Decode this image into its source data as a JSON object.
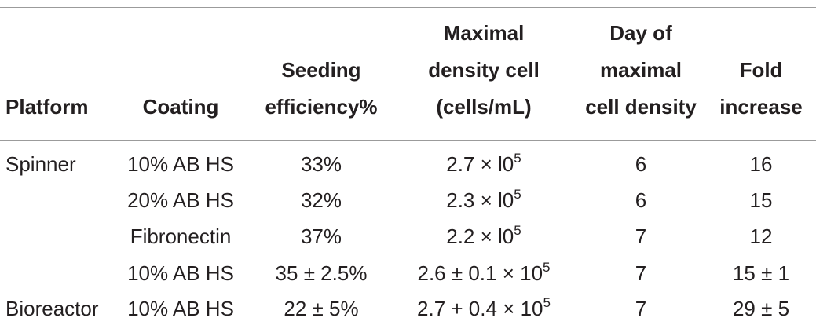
{
  "header": {
    "platform": "Platform",
    "coating": "Coating",
    "seeding": [
      "Seeding",
      "efficiency%"
    ],
    "maxdensity": [
      "Maximal",
      "density cell",
      "(cells/mL)"
    ],
    "day": [
      "Day of",
      "maximal",
      "cell density"
    ],
    "fold": [
      "Fold",
      "increase"
    ]
  },
  "rows": [
    {
      "platform": "Spinner",
      "coating": "10% AB HS",
      "seeding": "33%",
      "density_base": "2.7 × l0",
      "density_exp": "5",
      "day": "6",
      "fold": "16"
    },
    {
      "platform": "",
      "coating": "20% AB HS",
      "seeding": "32%",
      "density_base": "2.3 × l0",
      "density_exp": "5",
      "day": "6",
      "fold": "15"
    },
    {
      "platform": "",
      "coating": "Fibronectin",
      "seeding": "37%",
      "density_base": "2.2 × l0",
      "density_exp": "5",
      "day": "7",
      "fold": "12"
    },
    {
      "platform": "",
      "coating": "10% AB HS",
      "seeding": "35 ± 2.5%",
      "density_base": "2.6 ± 0.1 × 10",
      "density_exp": "5",
      "day": "7",
      "fold": "15 ± 1"
    },
    {
      "platform": "Bioreactor",
      "coating": "10% AB HS",
      "seeding": "22 ± 5%",
      "density_base": "2.7 + 0.4 × 10",
      "density_exp": "5",
      "day": "7",
      "fold": "29 ± 5"
    }
  ]
}
